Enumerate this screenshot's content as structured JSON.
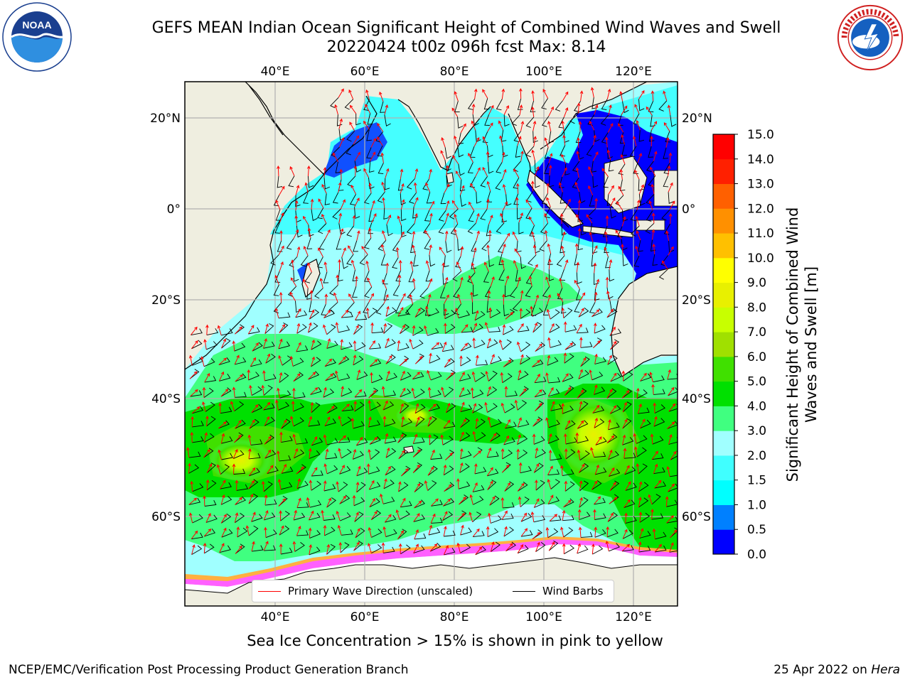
{
  "title": {
    "line1": "GEFS MEAN Indian Ocean Significant Height of Combined Wind Waves and Swell",
    "line2": "20220424 t00z 096h fcst   Max: 8.14"
  },
  "logos": {
    "left": {
      "name": "NOAA",
      "text": "NOAA"
    },
    "right": {
      "name": "National Weather Service"
    }
  },
  "map": {
    "lon_ticks": [
      "40°E",
      "60°E",
      "80°E",
      "100°E",
      "120°E"
    ],
    "lon_values": [
      40,
      60,
      80,
      100,
      120
    ],
    "lat_ticks": [
      "20°N",
      "0°",
      "20°S",
      "40°S",
      "60°S"
    ],
    "lat_values": [
      20,
      0,
      -20,
      -40,
      -60
    ],
    "lon_range": [
      20,
      130
    ],
    "lat_range": [
      -70,
      28
    ],
    "grid": true,
    "colors": {
      "land": "#efeee0",
      "ice": "#ffffff",
      "coast": "#000000",
      "grid": "#b0b0b0"
    }
  },
  "legend": {
    "placement": "bottom-center",
    "items": [
      {
        "label": "Primary Wave Direction (unscaled)",
        "color": "#ff0000"
      },
      {
        "label": "Wind Barbs",
        "color": "#000000"
      }
    ]
  },
  "colorbar": {
    "label": "Significant Height of Combined Wind Waves and Swell [m]",
    "tick_labels": [
      "0.0",
      "0.5",
      "1.0",
      "1.5",
      "2.0",
      "3.0",
      "4.0",
      "5.0",
      "6.0",
      "7.0",
      "8.0",
      "9.0",
      "10.0",
      "11.0",
      "12.0",
      "13.0",
      "14.0",
      "15.0"
    ],
    "colors": [
      "#0000ff",
      "#0080ff",
      "#00ffff",
      "#40ffff",
      "#a0ffff",
      "#40ff80",
      "#00e000",
      "#40e000",
      "#a0e000",
      "#c8ff00",
      "#e8f000",
      "#ffff00",
      "#ffc000",
      "#ff9000",
      "#ff6000",
      "#ff2000",
      "#ff0000"
    ]
  },
  "footer": {
    "note": "Sea Ice Concentration > 15% is shown in pink to yellow",
    "credit": "NCEP/EMC/Verification Post Processing Product Generation Branch",
    "date_prefix": "25 Apr 2022 on ",
    "machine": "Hera"
  }
}
